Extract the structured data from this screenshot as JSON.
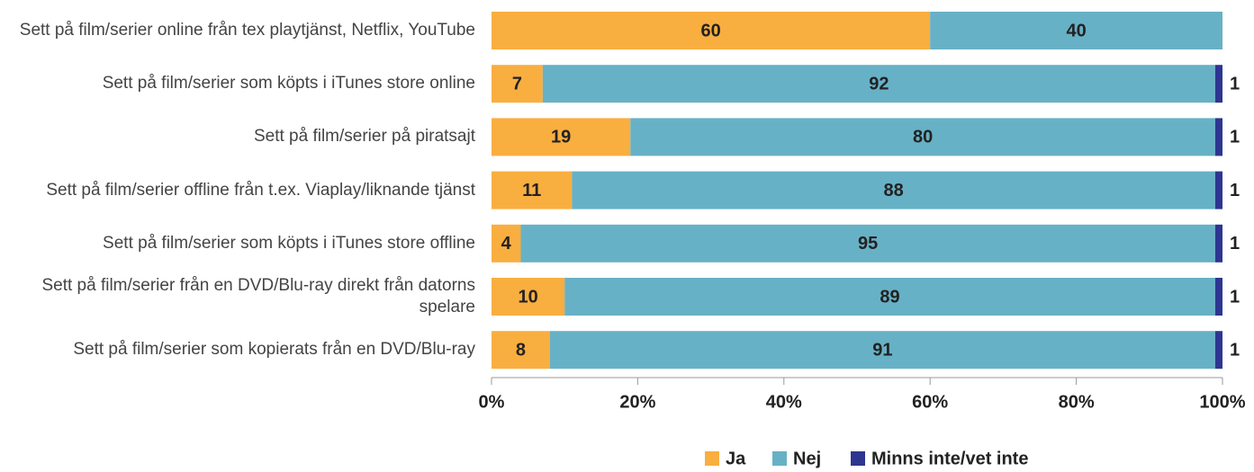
{
  "chart_data": {
    "type": "stacked_bar_horizontal",
    "categories": [
      "Sett på film/serier online från tex playtjänst, Netflix, YouTube",
      "Sett på film/serier som köpts i iTunes store online",
      "Sett på film/serier på piratsajt",
      "Sett på film/serier offline från t.ex. Viaplay/liknande tjänst",
      "Sett på film/serier som köpts i iTunes store offline",
      "Sett på film/serier från en DVD/Blu-ray direkt från datorns spelare",
      "Sett på film/serier som kopierats från en DVD/Blu-ray"
    ],
    "series": [
      {
        "name": "Ja",
        "color": "#f9ae40",
        "values": [
          60,
          7,
          19,
          11,
          4,
          10,
          8
        ]
      },
      {
        "name": "Nej",
        "color": "#67b1c6",
        "values": [
          40,
          92,
          80,
          88,
          95,
          89,
          91
        ]
      },
      {
        "name": "Minns inte/vet inte",
        "color": "#2e3590",
        "values": [
          null,
          1,
          1,
          1,
          1,
          1,
          1
        ]
      }
    ],
    "xlim": [
      0,
      100
    ],
    "xticks": [
      {
        "value": 0,
        "label": "0%"
      },
      {
        "value": 20,
        "label": "20%"
      },
      {
        "value": 40,
        "label": "40%"
      },
      {
        "value": 60,
        "label": "60%"
      },
      {
        "value": 80,
        "label": "80%"
      },
      {
        "value": 100,
        "label": "100%"
      }
    ],
    "legend": "bottom"
  }
}
